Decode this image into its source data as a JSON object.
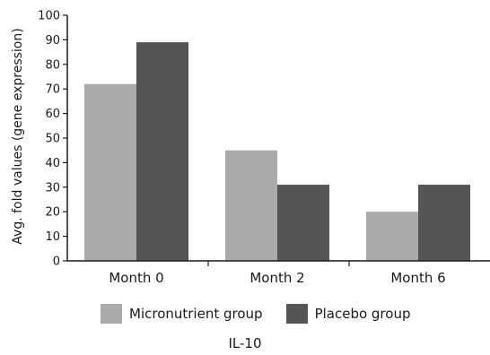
{
  "chart_data": {
    "type": "bar",
    "title": "IL-10",
    "xlabel": "",
    "ylabel": "Avg. fold values (gene expression)",
    "ylim": [
      0,
      100
    ],
    "yticks": [
      0,
      10,
      20,
      30,
      40,
      50,
      60,
      70,
      80,
      90,
      100
    ],
    "categories": [
      "Month 0",
      "Month 2",
      "Month 6"
    ],
    "series": [
      {
        "name": "Micronutrient group",
        "values": [
          72,
          45,
          20
        ],
        "color": "#aaaaaa"
      },
      {
        "name": "Placebo group",
        "values": [
          89,
          31,
          31
        ],
        "color": "#555555"
      }
    ],
    "grid": false,
    "legend_position": "bottom"
  }
}
